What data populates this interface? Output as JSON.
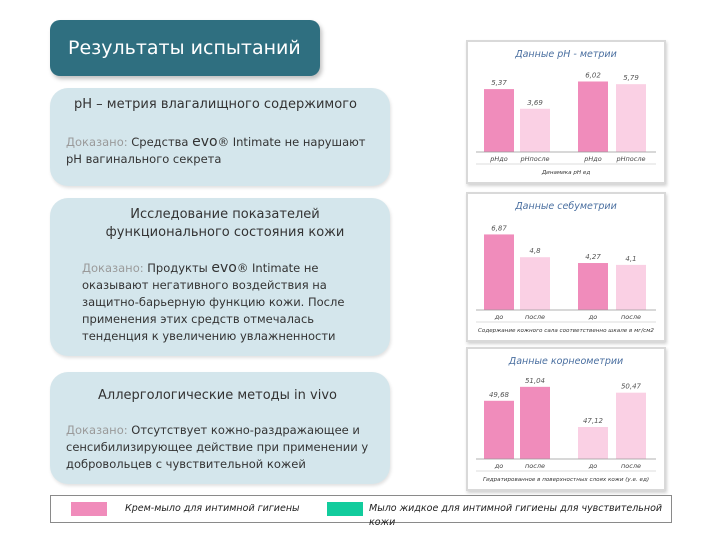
{
  "title": "Результаты испытаний",
  "cards": [
    {
      "heading": "рН – метрия влагалищного содержимого",
      "proved": "Доказано:",
      "text_pre": "Средства",
      "brand": "evo",
      "text_post": "® Intimate не нарушают рН вагинального секрета"
    },
    {
      "heading": "Исследование показателей функционального состояния кожи",
      "proved": "Доказано:",
      "text_pre": "Продукты",
      "brand": "evo",
      "text_post": "® Intimate не оказывают негативного воздействия на защитно-барьерную функцию кожи. После применения этих средств отмечалась тенденция к увеличению увлажненности"
    },
    {
      "heading": "Аллергологические методы in vivo",
      "proved": "Доказано:",
      "text_pre": "",
      "brand": "",
      "text_post": "Отсутствует кожно-раздражающее и сенсибилизирующее действие при применении у добровольцев с чувствительной кожей"
    }
  ],
  "legend": {
    "items": [
      {
        "label": "Крем-мыло для интимной гигиены",
        "color": "#f08cbb"
      },
      {
        "label": "Мыло жидкое для интимной гигиены для чувствительной кожи",
        "color": "#12cc9d"
      }
    ]
  },
  "chart_data": [
    {
      "type": "bar",
      "title": "Данные рН - метрии",
      "categories": [
        "рНдо",
        "рНпосле",
        "рНдо",
        "рНпосле"
      ],
      "values": [
        5.37,
        3.69,
        6.02,
        5.79
      ],
      "value_labels": [
        "5,37",
        "3,69",
        "6,02",
        "5,79"
      ],
      "xlabel": "Динамика рН ед",
      "ylim": [
        0,
        7
      ],
      "colors": [
        "#f08cbb",
        "#fad0e4",
        "#f08cbb",
        "#fad0e4"
      ]
    },
    {
      "type": "bar",
      "title": "Данные себуметрии",
      "categories": [
        "до",
        "после",
        "до",
        "после"
      ],
      "values": [
        6.87,
        4.8,
        4.27,
        4.1
      ],
      "value_labels": [
        "6,87",
        "4,8",
        "4,27",
        "4,1"
      ],
      "xlabel": "Содержание кожного сала соответственно шкале в мг/см2",
      "ylim": [
        0,
        8
      ],
      "colors": [
        "#f08cbb",
        "#fad0e4",
        "#f08cbb",
        "#fad0e4"
      ]
    },
    {
      "type": "bar",
      "title": "Данные корнеометрии",
      "categories": [
        "до",
        "после",
        "до",
        "после"
      ],
      "values": [
        49.68,
        51.04,
        47.12,
        50.47
      ],
      "value_labels": [
        "49,68",
        "51,04",
        "47,12",
        "50,47"
      ],
      "xlabel": "Гидратированное в поверхностных слоях кожи (у.е. ед)",
      "ylim": [
        44,
        52
      ],
      "colors": [
        "#f08cbb",
        "#f08cbb",
        "#fad0e4",
        "#fad0e4"
      ]
    }
  ]
}
